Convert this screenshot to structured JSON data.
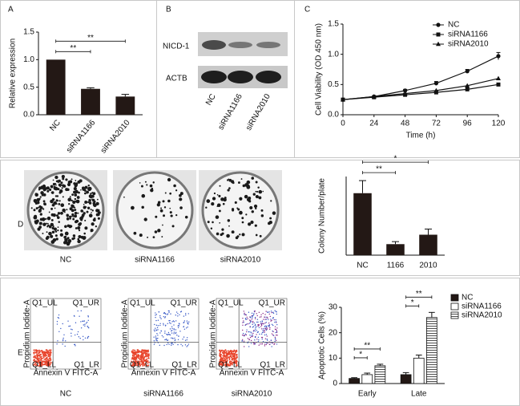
{
  "panel_labels": [
    "A",
    "B",
    "C",
    "D",
    "E"
  ],
  "blot": {
    "rows": [
      "NICD-1",
      "ACTB"
    ],
    "lanes": [
      "NC",
      "siRNA1166",
      "siRNA2010"
    ]
  },
  "colony": {
    "labels": [
      "NC",
      "siRNA1166",
      "siRNA2010"
    ]
  },
  "flow": {
    "labels": [
      "NC",
      "siRNA1166",
      "siRNA2010"
    ],
    "quadrants": [
      "Q1_UL",
      "Q1_UR",
      "Q1_LL",
      "Q1_LR"
    ],
    "x_label": "Annexin V FITC-A",
    "y_label": "Propidium Iodide-A"
  },
  "chart_data": [
    {
      "type": "bar",
      "categories": [
        "NC",
        "siRNA1166",
        "siRNA2010"
      ],
      "values": [
        1.0,
        0.47,
        0.33
      ],
      "errors": [
        0,
        0.02,
        0.04
      ],
      "color": "#231815",
      "ylim": [
        0,
        1.5
      ],
      "yticks": [
        {
          "value": 0,
          "label": "0.0"
        },
        {
          "value": 0.5,
          "label": "0.5"
        },
        {
          "value": 1,
          "label": "1.0"
        },
        {
          "value": 1.5,
          "label": "1.5"
        }
      ],
      "y_label": "Relative expression",
      "significance": [
        {
          "pair": [
            0,
            1
          ],
          "label": "**"
        },
        {
          "pair": [
            0,
            2
          ],
          "label": "**"
        }
      ]
    },
    {
      "type": "line",
      "x": [
        0,
        24,
        48,
        72,
        96,
        120
      ],
      "series": [
        {
          "name": "NC",
          "color": "#111111",
          "marker": "circle",
          "values": [
            0.25,
            0.3,
            0.4,
            0.52,
            0.72,
            0.97
          ],
          "errors": [
            0,
            0,
            0.02,
            0.03,
            0.03,
            0.06
          ]
        },
        {
          "name": "siRNA1166",
          "color": "#111111",
          "marker": "square",
          "values": [
            0.25,
            0.29,
            0.33,
            0.37,
            0.42,
            0.5
          ]
        },
        {
          "name": "siRNA2010",
          "color": "#111111",
          "marker": "triangle",
          "values": [
            0.25,
            0.3,
            0.35,
            0.4,
            0.48,
            0.6
          ]
        }
      ],
      "xlim": [
        0,
        120
      ],
      "xticks": [
        0,
        24,
        48,
        72,
        96,
        120
      ],
      "ylim": [
        0,
        1.5
      ],
      "yticks": [
        {
          "value": 0,
          "label": "0.0"
        },
        {
          "value": 0.5,
          "label": "0.5"
        },
        {
          "value": 1,
          "label": "1.0"
        },
        {
          "value": 1.5,
          "label": "1.5"
        }
      ],
      "x_label": "Time (h)",
      "y_label": "Cell Viability (OD 450 nm)",
      "legend": "upper-right"
    },
    {
      "type": "bar",
      "categories": [
        "NC",
        "1166",
        "2010"
      ],
      "values": [
        197,
        35,
        65
      ],
      "errors": [
        40,
        8,
        18
      ],
      "color": "#231815",
      "ylim": [
        0,
        250
      ],
      "y_label": "Colony Number/plate",
      "significance": [
        {
          "pair": [
            0,
            1
          ],
          "label": "**"
        },
        {
          "pair": [
            0,
            2
          ],
          "label": "*"
        }
      ]
    },
    {
      "type": "grouped_bar",
      "categories": [
        "Early",
        "Late"
      ],
      "series": [
        {
          "name": "NC",
          "color": "#231815",
          "values": [
            2,
            3.5
          ],
          "errors": [
            0.3,
            0.8
          ]
        },
        {
          "name": "siRNA1166",
          "color": "#ffffff",
          "values": [
            3.5,
            10
          ],
          "errors": [
            0.6,
            1.2
          ]
        },
        {
          "name": "siRNA2010",
          "color": "#ffffff",
          "pattern": "horizontal-lines",
          "values": [
            7,
            26
          ],
          "errors": [
            0.6,
            2
          ]
        }
      ],
      "ylim": [
        0,
        30
      ],
      "yticks": [
        0,
        10,
        20,
        30
      ],
      "y_label": "Apoptotic Cells (%)",
      "legend": "upper-right",
      "significance": [
        {
          "category": 0,
          "pair": [
            0,
            1
          ],
          "label": "*"
        },
        {
          "category": 0,
          "pair": [
            0,
            2
          ],
          "label": "**"
        },
        {
          "category": 1,
          "pair": [
            0,
            1
          ],
          "label": "*"
        },
        {
          "category": 1,
          "pair": [
            0,
            2
          ],
          "label": "**"
        }
      ]
    }
  ]
}
